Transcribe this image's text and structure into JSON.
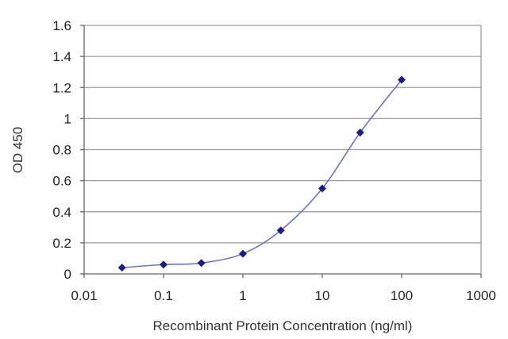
{
  "chart_data": {
    "type": "scatter",
    "title": "",
    "xlabel": "Recombinant Protein Concentration (ng/ml)",
    "ylabel": "OD 450",
    "x_scale": "log",
    "xlim": [
      0.01,
      1000
    ],
    "ylim": [
      0,
      1.6
    ],
    "x_tick_labels": [
      "0.01",
      "0.1",
      "1",
      "10",
      "100",
      "1000"
    ],
    "x_ticks": [
      0.01,
      0.1,
      1,
      10,
      100,
      1000
    ],
    "y_tick_labels": [
      "0",
      "0.2",
      "0.4",
      "0.6",
      "0.8",
      "1",
      "1.2",
      "1.4",
      "1.6"
    ],
    "y_ticks": [
      0,
      0.2,
      0.4,
      0.6,
      0.8,
      1.0,
      1.2,
      1.4,
      1.6
    ],
    "grid": "horizontal",
    "legend": "none",
    "series": [
      {
        "x": [
          0.03,
          0.1,
          0.3,
          1,
          3,
          10,
          30,
          100
        ],
        "y": [
          0.04,
          0.06,
          0.07,
          0.13,
          0.28,
          0.55,
          0.91,
          1.25
        ],
        "color": "#1a1a8c",
        "line_color": "#6f73c9",
        "marker": "diamond"
      }
    ],
    "colors": {
      "grid": "#9a9a9a",
      "axis": "#666666"
    }
  }
}
